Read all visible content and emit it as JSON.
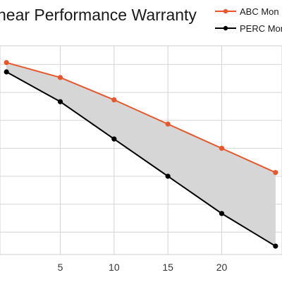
{
  "chart_data": {
    "type": "line",
    "title": "near Performance Warranty",
    "x": [
      0,
      5,
      10,
      15,
      20,
      25
    ],
    "series": [
      {
        "name": "ABC Mon",
        "color": "#e8562a",
        "values": [
          99.2,
          97.6,
          95.2,
          92.6,
          90.0,
          87.4
        ]
      },
      {
        "name": "PERC Mon",
        "color": "#000000",
        "values": [
          98.2,
          95.0,
          91.0,
          87.0,
          83.0,
          79.5
        ]
      }
    ],
    "fill_between_color": "#d6d6d6",
    "x_ticks": [
      "5",
      "10",
      "15",
      "20"
    ],
    "xlim": [
      -0.6,
      25.6
    ],
    "ylim": [
      78.6,
      101
    ],
    "y_grid_values": [
      81,
      84,
      87,
      90,
      93,
      96,
      99
    ],
    "grid": true,
    "legend_position": "top-right",
    "xlabel": "",
    "ylabel": ""
  }
}
